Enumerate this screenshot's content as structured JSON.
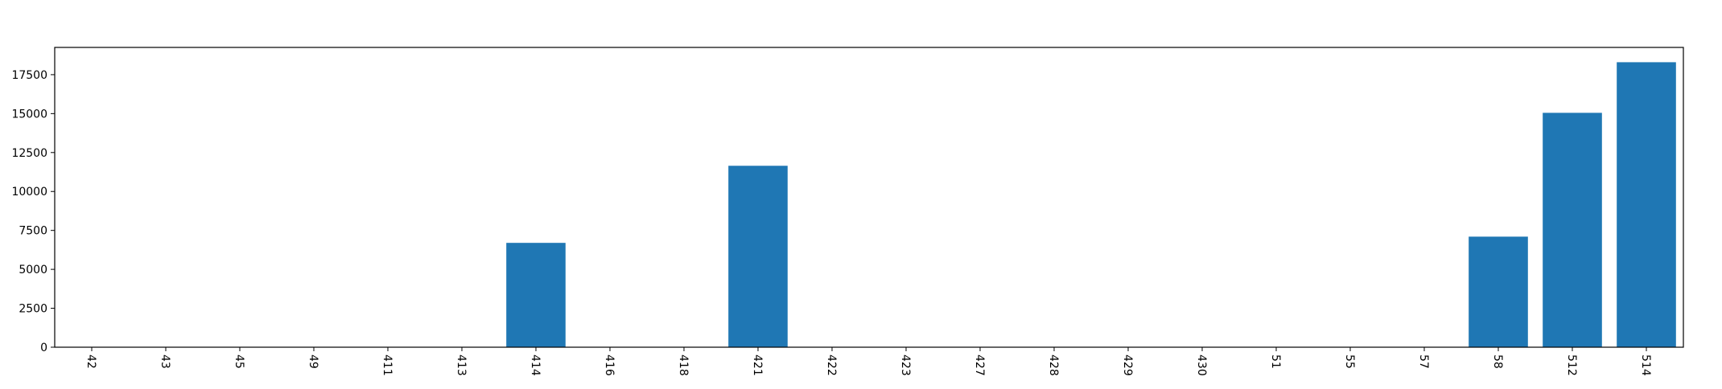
{
  "chart_data": {
    "type": "bar",
    "categories": [
      "42",
      "43",
      "45",
      "49",
      "411",
      "413",
      "414",
      "416",
      "418",
      "421",
      "422",
      "423",
      "427",
      "428",
      "429",
      "430",
      "51",
      "55",
      "57",
      "58",
      "512",
      "514"
    ],
    "values": [
      0,
      0,
      0,
      0,
      0,
      0,
      6700,
      0,
      0,
      11650,
      0,
      0,
      0,
      0,
      0,
      0,
      0,
      0,
      0,
      7100,
      15050,
      18300
    ],
    "title": "",
    "xlabel": "",
    "ylabel": "",
    "ylim": [
      0,
      19250
    ],
    "yticks": [
      0,
      2500,
      5000,
      7500,
      10000,
      12500,
      15000,
      17500
    ],
    "ytick_labels": [
      "0",
      "2500",
      "5000",
      "7500",
      "10000",
      "12500",
      "15000",
      "17500"
    ],
    "bar_color": "#1f77b4",
    "grid": false,
    "xtick_rotation": "vertical"
  }
}
